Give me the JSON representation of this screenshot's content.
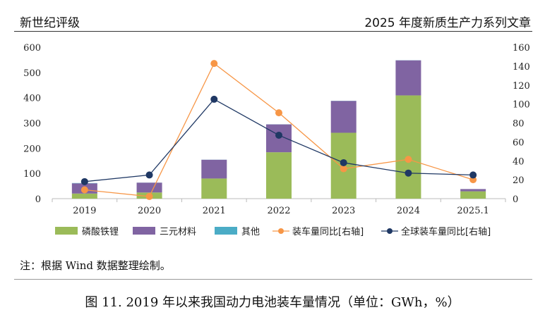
{
  "header": {
    "left": "新世纪评级",
    "right": "2025 年度新质生产力系列文章"
  },
  "note": "注：根据 Wind 数据整理绘制。",
  "caption": "图 11.   2019 年以来我国动力电池装车量情况（单位：GWh，%）",
  "chart_data": {
    "type": "bar",
    "categories": [
      "2019",
      "2020",
      "2021",
      "2022",
      "2023",
      "2024",
      "2025.1"
    ],
    "ylim": [
      0,
      600
    ],
    "yticks": [
      0,
      100,
      200,
      300,
      400,
      500,
      600
    ],
    "y2lim": [
      0,
      160
    ],
    "y2ticks": [
      0,
      20,
      40,
      60,
      80,
      100,
      120,
      140,
      160
    ],
    "legend_position": "bottom",
    "series": [
      {
        "name": "磷酸铁锂",
        "kind": "bar",
        "axis": "left",
        "color": "#9bbb59",
        "values": [
          20.2,
          24.4,
          79.8,
          183.8,
          261.0,
          409.0,
          29.0
        ]
      },
      {
        "name": "三元材料",
        "kind": "bar",
        "axis": "left",
        "color": "#8064a2",
        "values": [
          40.5,
          38.9,
          74.3,
          110.4,
          126.2,
          139.0,
          9.0
        ]
      },
      {
        "name": "其他",
        "kind": "bar",
        "axis": "left",
        "color": "#4bacc6",
        "values": [
          1.2,
          0.3,
          0.4,
          0.4,
          0.5,
          0.4,
          0.1
        ]
      },
      {
        "name": "装车量同比[右轴]",
        "kind": "line",
        "axis": "right",
        "color": "#f79646",
        "values": [
          9.3,
          2.3,
          142.8,
          90.7,
          31.6,
          41.5,
          20.0
        ]
      },
      {
        "name": "全球装车量同比[右轴]",
        "kind": "line",
        "axis": "right",
        "color": "#1f3864",
        "values": [
          18,
          25,
          105,
          67,
          38,
          27,
          25
        ]
      }
    ]
  }
}
